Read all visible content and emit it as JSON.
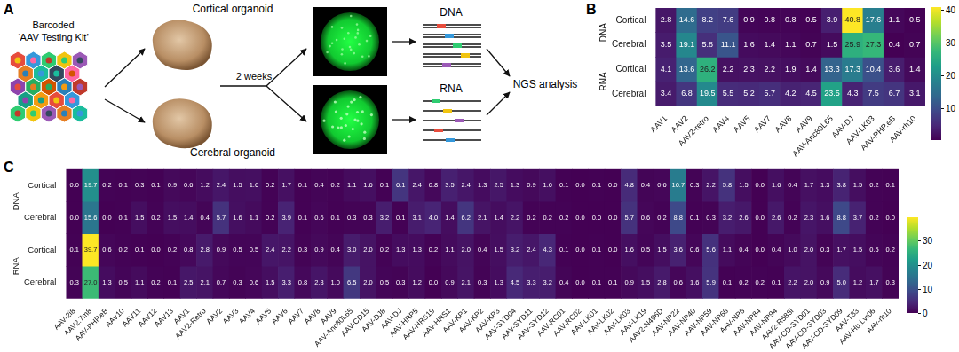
{
  "diagram": {
    "panel": "A",
    "kit_label": [
      "Barcoded",
      "‘AAV Testing Kit’"
    ],
    "top_organoid": "Cortical organoid",
    "bottom_organoid": "Cerebral organoid",
    "time": "2 weeks",
    "top_extract": "DNA",
    "bottom_extract": "RNA",
    "analysis": "NGS analysis"
  },
  "chart_data": [
    {
      "type": "heatmap",
      "panel": "B",
      "categories": [
        "AAV1",
        "AAV2",
        "AAV2-retro",
        "AAV4",
        "AAV5",
        "AAV7",
        "AAV8",
        "AAV9",
        "AAV-Anc80L65",
        "AAV-DJ",
        "AAV-LK03",
        "AAV-PHP.eB",
        "AAV-rh10"
      ],
      "row_groups": [
        {
          "label": "DNA",
          "rows": [
            "Cortical",
            "Cerebral"
          ]
        },
        {
          "label": "RNA",
          "rows": [
            "Cortical",
            "Cerebral"
          ]
        }
      ],
      "cells": [
        [
          2.8,
          14.6,
          8.2,
          7.6,
          0.9,
          0.8,
          0.8,
          0.5,
          3.9,
          40.8,
          17.6,
          1.1,
          0.5
        ],
        [
          3.5,
          19.1,
          5.8,
          11.1,
          1.6,
          1.4,
          1.1,
          0.7,
          1.5,
          25.9,
          27.3,
          0.4,
          0.7
        ],
        [
          4.1,
          13.6,
          26.2,
          2.2,
          2.3,
          2.2,
          1.9,
          1.4,
          13.3,
          17.3,
          10.4,
          3.6,
          1.4
        ],
        [
          3.4,
          6.8,
          19.5,
          5.5,
          5.2,
          5.7,
          4.2,
          4.5,
          23.5,
          4.3,
          7.5,
          6.7,
          3.1
        ]
      ],
      "data_labels": true,
      "colorbar": {
        "range": [
          0.4,
          40.8
        ],
        "ticks": [
          10,
          20,
          30,
          40
        ]
      }
    },
    {
      "type": "heatmap",
      "panel": "C",
      "categories": [
        "AAV-2i8",
        "AAV2.7m8",
        "AAV-PHP.eB",
        "AAV10",
        "AAV11",
        "AAV12",
        "AAV13",
        "AAV1",
        "AAV2-Retro",
        "AAV2",
        "AAV3",
        "AAV4",
        "AAV5",
        "AAV6",
        "AAV7",
        "AAV8",
        "AAV9",
        "AAV-Anc80L65",
        "AAV-CD15",
        "AAV-DJ8",
        "AAV-DJ",
        "AAV-HRP5",
        "AAV-HRS19",
        "AAV-HRS1",
        "AAV-KP1",
        "AAV-KP2",
        "AAV-KP3",
        "AAV-SYD04",
        "AAV-SYD11",
        "AAV-SYD12",
        "AAV-RC01",
        "AAV-RC02",
        "AAV-LK01",
        "AAV-LK02",
        "AAV-LK03",
        "AAV-LK19",
        "AAV2-N496D",
        "AAV-NP22",
        "AAV-NP40",
        "AAV-NP59",
        "AAV-NP66",
        "AAV-NP6",
        "AAV-NP84",
        "AAV-NP94",
        "AAV2-R588I",
        "AAV-CD-SYD01",
        "AAV-CD-SYD03",
        "AAV-CD-SYD09",
        "AAV-T33",
        "AAV-Hu.Lvr06",
        "AAV-rh10"
      ],
      "row_groups": [
        {
          "label": "DNA",
          "rows": [
            "Cortical",
            "Cerebral"
          ]
        },
        {
          "label": "RNA",
          "rows": [
            "Cortical",
            "Cerebral"
          ]
        }
      ],
      "cells": [
        [
          0.0,
          19.7,
          0.2,
          0.1,
          0.3,
          0.1,
          0.9,
          0.6,
          1.2,
          2.4,
          1.5,
          1.6,
          0.2,
          1.7,
          0.1,
          0.4,
          0.2,
          1.1,
          1.6,
          0.1,
          6.1,
          2.4,
          0.8,
          3.5,
          2.4,
          1.3,
          2.5,
          1.3,
          0.9,
          1.6,
          0.1,
          0.0,
          0.1,
          0.0,
          4.8,
          0.4,
          0.6,
          16.7,
          0.3,
          2.2,
          5.8,
          1.5,
          0.0,
          1.6,
          0.4,
          1.7,
          1.3,
          3.8,
          1.5,
          0.2,
          0.1
        ],
        [
          0.0,
          15.6,
          0.0,
          0.1,
          1.5,
          0.2,
          1.5,
          1.4,
          0.4,
          5.7,
          1.6,
          1.1,
          0.2,
          3.9,
          0.1,
          0.6,
          0.1,
          0.3,
          0.3,
          3.2,
          0.1,
          3.1,
          4.0,
          1.4,
          6.2,
          2.1,
          1.4,
          2.2,
          0.2,
          0.2,
          0.2,
          0.0,
          0.0,
          0.0,
          5.7,
          0.6,
          0.2,
          8.8,
          0.1,
          0.3,
          3.2,
          2.6,
          0.0,
          2.6,
          0.2,
          2.3,
          1.6,
          8.8,
          3.7,
          0.2,
          0.0
        ],
        [
          0.1,
          39.7,
          0.6,
          0.2,
          0.1,
          0.0,
          0.2,
          0.8,
          2.8,
          0.9,
          0.5,
          0.5,
          2.4,
          2.2,
          0.3,
          0.9,
          0.4,
          3.0,
          2.0,
          0.2,
          1.3,
          1.3,
          0.2,
          1.1,
          2.0,
          0.4,
          1.5,
          3.2,
          2.4,
          4.3,
          0.1,
          0.0,
          0.1,
          0.0,
          1.6,
          0.5,
          1.5,
          3.6,
          0.6,
          5.6,
          1.1,
          0.4,
          0.0,
          0.4,
          1.0,
          2.0,
          0.3,
          1.7,
          1.5,
          0.5,
          0.2
        ],
        [
          0.3,
          27.0,
          1.3,
          0.5,
          1.1,
          0.2,
          0.1,
          2.5,
          2.1,
          0.7,
          0.3,
          0.6,
          1.5,
          3.3,
          0.8,
          2.3,
          1.0,
          6.5,
          2.0,
          0.5,
          0.3,
          1.2,
          0.0,
          0.9,
          2.1,
          0.3,
          1.3,
          4.5,
          3.3,
          3.2,
          0.4,
          0.0,
          0.1,
          0.1,
          0.9,
          1.5,
          2.8,
          0.6,
          1.6,
          5.9,
          0.1,
          0.2,
          0.2,
          0.1,
          2.2,
          2.0,
          0.9,
          5.0,
          1.2,
          1.7,
          0.3
        ]
      ],
      "data_labels": true,
      "colorbar": {
        "range": [
          0.0,
          39.7
        ],
        "ticks": [
          0,
          10,
          20,
          30
        ]
      }
    }
  ]
}
